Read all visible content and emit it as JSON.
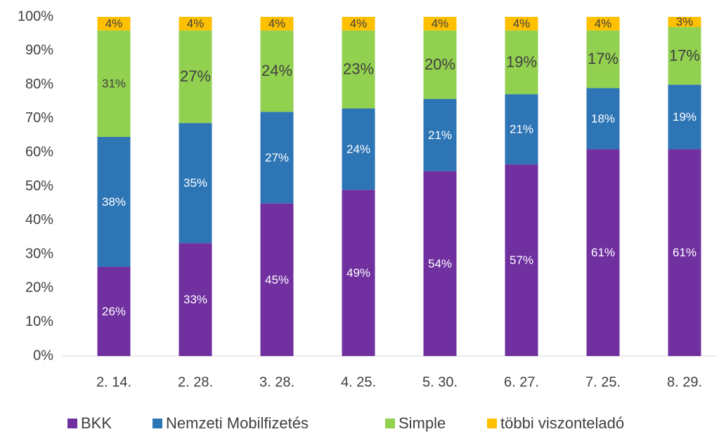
{
  "chart_data": {
    "type": "stacked_bar",
    "categories": [
      "2. 14.",
      "2. 28.",
      "3. 28.",
      "4. 25.",
      "5. 30.",
      "6. 27.",
      "7. 25.",
      "8. 29."
    ],
    "series": [
      {
        "name": "BKK",
        "color": "#7030a0",
        "values": [
          26.3,
          33.3,
          45,
          49,
          54.5,
          56.5,
          61,
          61
        ],
        "value_labels": [
          "26%",
          "33%",
          "45%",
          "49%",
          "54%",
          "57%",
          "61%",
          "61%"
        ]
      },
      {
        "name": "Nemzeti Mobilfizetés",
        "color": "#2e75b6",
        "values": [
          38.3,
          35.4,
          27,
          24,
          21.3,
          20.7,
          18,
          19
        ],
        "value_labels": [
          "38%",
          "35%",
          "27%",
          "24%",
          "21%",
          "21%",
          "18%",
          "19%"
        ]
      },
      {
        "name": "Simple",
        "color": "#92d050",
        "values": [
          31.4,
          27.3,
          24,
          23,
          20.2,
          18.8,
          17,
          17
        ],
        "value_labels": [
          "31%",
          "27%",
          "24%",
          "23%",
          "20%",
          "19%",
          "17%",
          "17%"
        ]
      },
      {
        "name": "többi viszonteladó",
        "color": "#ffc000",
        "values": [
          4.0,
          4.0,
          4,
          4,
          4.0,
          4.0,
          4,
          3
        ],
        "value_labels": [
          "4%",
          "4%",
          "4%",
          "4%",
          "4%",
          "4%",
          "4%",
          "3%"
        ]
      }
    ],
    "ylim": [
      0,
      100
    ],
    "yticks": [
      {
        "value": 0,
        "label": "0%"
      },
      {
        "value": 10,
        "label": "10%"
      },
      {
        "value": 20,
        "label": "20%"
      },
      {
        "value": 30,
        "label": "30%"
      },
      {
        "value": 40,
        "label": "40%"
      },
      {
        "value": 50,
        "label": "50%"
      },
      {
        "value": 60,
        "label": "60%"
      },
      {
        "value": 70,
        "label": "70%"
      },
      {
        "value": 80,
        "label": "80%"
      },
      {
        "value": 90,
        "label": "90%"
      },
      {
        "value": 100,
        "label": "100%"
      }
    ],
    "grid": false,
    "legend": "bottom"
  }
}
